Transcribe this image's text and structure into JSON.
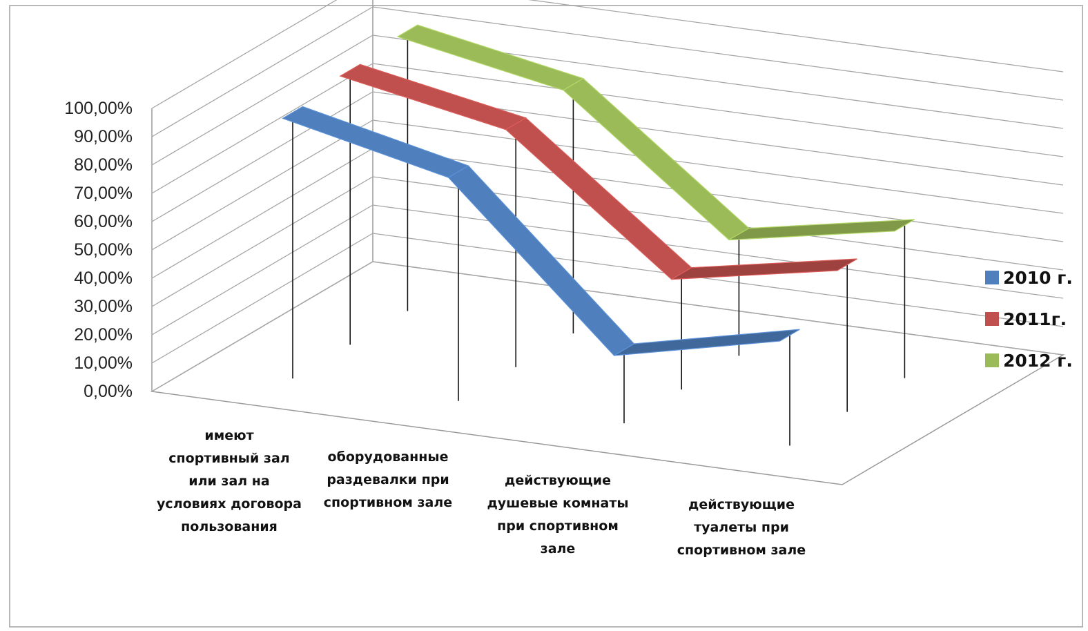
{
  "chart_data": {
    "type": "line",
    "subtype": "3d-ribbon",
    "title": "",
    "categories": [
      [
        "имеют",
        "спортивный зал",
        "или зал на",
        "условиях договора",
        "пользования"
      ],
      [
        "оборудованные",
        "раздевалки при",
        "спортивном зале"
      ],
      [
        "действующие",
        "душевые комнаты",
        "при спортивном",
        "зале"
      ],
      [
        "действующие",
        "туалеты при",
        "спортивном зале"
      ]
    ],
    "series": [
      {
        "name": "2010 г.",
        "values": [
          94,
          81,
          26,
          39
        ],
        "color": "#4f7fbd"
      },
      {
        "name": "2011г.",
        "values": [
          97,
          86,
          41,
          52
        ],
        "color": "#c0504d"
      },
      {
        "name": "2012 г.",
        "values": [
          99,
          88,
          43,
          54
        ],
        "color": "#9bbb59"
      }
    ],
    "yticks": [
      "0,00%",
      "10,00%",
      "20,00%",
      "30,00%",
      "40,00%",
      "50,00%",
      "60,00%",
      "70,00%",
      "80,00%",
      "90,00%",
      "100,00%"
    ],
    "ylim": [
      0,
      100
    ],
    "grid": true,
    "legend": "right"
  }
}
